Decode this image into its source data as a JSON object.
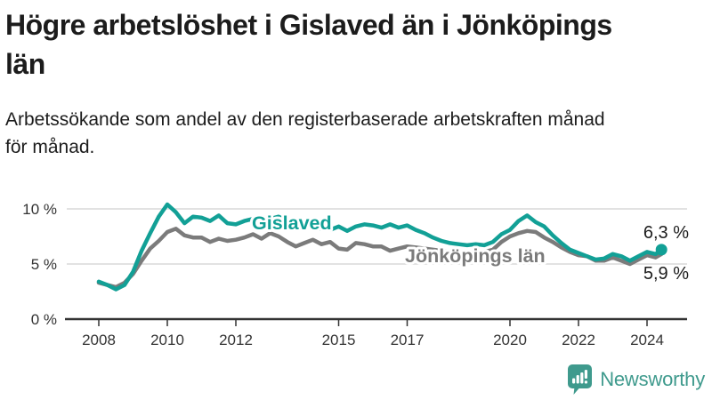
{
  "header": {
    "title_lines": [
      "Högre arbetslöshet i Gislaved än i Jönköpings",
      "län"
    ],
    "subtitle_lines": [
      "Arbetssökande som andel av den registerbaserade arbetskraften månad",
      "för månad."
    ]
  },
  "chart": {
    "series_labels": {
      "gislaved": "Gislaved",
      "jonkopings": "Jönköpings län"
    },
    "end_labels": {
      "gislaved": "6,3 %",
      "jonkopings": "5,9 %"
    }
  },
  "footer": {
    "brand": "Newsworthy"
  },
  "colors": {
    "gislaved": "#12a096",
    "jonkopings": "#7b7b7b",
    "axis": "#333333",
    "grid": "#d9d9d9",
    "brand": "#3f9a8d",
    "text": "#1c1c1c"
  },
  "chart_data": {
    "type": "line",
    "title": "Högre arbetslöshet i Gislaved än i Jönköpings län",
    "subtitle": "Arbetssökande som andel av den registerbaserade arbetskraften månad för månad.",
    "ylabel": "",
    "xlabel": "",
    "unit": "%",
    "ylim": [
      0,
      11
    ],
    "xlim": [
      2007.6,
      2025.1
    ],
    "grid": "horizontal",
    "legend_position": "inline-labels",
    "y_ticks": [
      {
        "value": 10,
        "label": "10 %"
      },
      {
        "value": 5,
        "label": "5 %"
      },
      {
        "value": 0,
        "label": "0 %"
      }
    ],
    "x_ticks": [
      {
        "value": 2008,
        "label": "2008"
      },
      {
        "value": 2010,
        "label": "2010"
      },
      {
        "value": 2012,
        "label": "2012"
      },
      {
        "value": 2015,
        "label": "2015"
      },
      {
        "value": 2017,
        "label": "2017"
      },
      {
        "value": 2020,
        "label": "2020"
      },
      {
        "value": 2022,
        "label": "2022"
      },
      {
        "value": 2024,
        "label": "2024"
      }
    ],
    "series": [
      {
        "id": "gislaved",
        "name": "Gislaved",
        "color": "#12a096",
        "end_value_label": "6,3 %",
        "points": [
          [
            2008.0,
            3.4
          ],
          [
            2008.25,
            3.1
          ],
          [
            2008.5,
            2.7
          ],
          [
            2008.75,
            3.1
          ],
          [
            2009.0,
            4.3
          ],
          [
            2009.25,
            6.2
          ],
          [
            2009.5,
            7.8
          ],
          [
            2009.75,
            9.3
          ],
          [
            2010.0,
            10.4
          ],
          [
            2010.25,
            9.7
          ],
          [
            2010.5,
            8.7
          ],
          [
            2010.75,
            9.3
          ],
          [
            2011.0,
            9.2
          ],
          [
            2011.25,
            8.9
          ],
          [
            2011.5,
            9.4
          ],
          [
            2011.75,
            8.7
          ],
          [
            2012.0,
            8.6
          ],
          [
            2012.25,
            8.9
          ],
          [
            2012.5,
            9.1
          ],
          [
            2012.75,
            9.3
          ],
          [
            2013.0,
            9.1
          ],
          [
            2013.25,
            9.3
          ],
          [
            2013.5,
            8.9
          ],
          [
            2013.75,
            8.7
          ],
          [
            2014.0,
            8.6
          ],
          [
            2014.25,
            8.4
          ],
          [
            2014.5,
            8.2
          ],
          [
            2014.75,
            8.1
          ],
          [
            2015.0,
            8.4
          ],
          [
            2015.25,
            8.0
          ],
          [
            2015.5,
            8.4
          ],
          [
            2015.75,
            8.6
          ],
          [
            2016.0,
            8.5
          ],
          [
            2016.25,
            8.3
          ],
          [
            2016.5,
            8.6
          ],
          [
            2016.75,
            8.3
          ],
          [
            2017.0,
            8.5
          ],
          [
            2017.25,
            8.1
          ],
          [
            2017.5,
            7.8
          ],
          [
            2017.75,
            7.4
          ],
          [
            2018.0,
            7.1
          ],
          [
            2018.25,
            6.9
          ],
          [
            2018.5,
            6.8
          ],
          [
            2018.75,
            6.7
          ],
          [
            2019.0,
            6.8
          ],
          [
            2019.25,
            6.7
          ],
          [
            2019.5,
            7.0
          ],
          [
            2019.75,
            7.7
          ],
          [
            2020.0,
            8.1
          ],
          [
            2020.25,
            8.9
          ],
          [
            2020.5,
            9.4
          ],
          [
            2020.75,
            8.8
          ],
          [
            2021.0,
            8.4
          ],
          [
            2021.25,
            7.6
          ],
          [
            2021.5,
            6.9
          ],
          [
            2021.75,
            6.3
          ],
          [
            2022.0,
            6.0
          ],
          [
            2022.25,
            5.7
          ],
          [
            2022.5,
            5.4
          ],
          [
            2022.75,
            5.5
          ],
          [
            2023.0,
            5.9
          ],
          [
            2023.25,
            5.7
          ],
          [
            2023.5,
            5.3
          ],
          [
            2023.75,
            5.7
          ],
          [
            2024.0,
            6.1
          ],
          [
            2024.25,
            5.9
          ],
          [
            2024.42,
            6.3
          ]
        ]
      },
      {
        "id": "jonkopings",
        "name": "Jönköpings län",
        "color": "#7b7b7b",
        "end_value_label": "5,9 %",
        "points": [
          [
            2008.0,
            3.3
          ],
          [
            2008.25,
            3.1
          ],
          [
            2008.5,
            2.9
          ],
          [
            2008.75,
            3.3
          ],
          [
            2009.0,
            4.1
          ],
          [
            2009.25,
            5.3
          ],
          [
            2009.5,
            6.4
          ],
          [
            2009.75,
            7.1
          ],
          [
            2010.0,
            7.9
          ],
          [
            2010.25,
            8.2
          ],
          [
            2010.5,
            7.6
          ],
          [
            2010.75,
            7.4
          ],
          [
            2011.0,
            7.4
          ],
          [
            2011.25,
            7.0
          ],
          [
            2011.5,
            7.3
          ],
          [
            2011.75,
            7.1
          ],
          [
            2012.0,
            7.2
          ],
          [
            2012.25,
            7.4
          ],
          [
            2012.5,
            7.7
          ],
          [
            2012.75,
            7.3
          ],
          [
            2013.0,
            7.8
          ],
          [
            2013.25,
            7.5
          ],
          [
            2013.5,
            7.0
          ],
          [
            2013.75,
            6.6
          ],
          [
            2014.0,
            6.9
          ],
          [
            2014.25,
            7.2
          ],
          [
            2014.5,
            6.8
          ],
          [
            2014.75,
            7.0
          ],
          [
            2015.0,
            6.4
          ],
          [
            2015.25,
            6.3
          ],
          [
            2015.5,
            6.9
          ],
          [
            2015.75,
            6.8
          ],
          [
            2016.0,
            6.6
          ],
          [
            2016.25,
            6.6
          ],
          [
            2016.5,
            6.2
          ],
          [
            2016.75,
            6.4
          ],
          [
            2017.0,
            6.6
          ],
          [
            2017.25,
            6.5
          ],
          [
            2017.5,
            6.4
          ],
          [
            2017.75,
            6.3
          ],
          [
            2018.0,
            6.2
          ],
          [
            2018.25,
            6.1
          ],
          [
            2018.5,
            6.0
          ],
          [
            2018.75,
            6.1
          ],
          [
            2019.0,
            6.0
          ],
          [
            2019.25,
            6.1
          ],
          [
            2019.5,
            6.3
          ],
          [
            2019.75,
            7.0
          ],
          [
            2020.0,
            7.5
          ],
          [
            2020.25,
            7.8
          ],
          [
            2020.5,
            8.0
          ],
          [
            2020.75,
            7.9
          ],
          [
            2021.0,
            7.4
          ],
          [
            2021.25,
            7.0
          ],
          [
            2021.5,
            6.5
          ],
          [
            2021.75,
            6.1
          ],
          [
            2022.0,
            5.8
          ],
          [
            2022.25,
            5.7
          ],
          [
            2022.5,
            5.3
          ],
          [
            2022.75,
            5.3
          ],
          [
            2023.0,
            5.6
          ],
          [
            2023.25,
            5.3
          ],
          [
            2023.5,
            5.0
          ],
          [
            2023.75,
            5.4
          ],
          [
            2024.0,
            5.8
          ],
          [
            2024.25,
            5.6
          ],
          [
            2024.42,
            5.9
          ]
        ]
      }
    ]
  }
}
